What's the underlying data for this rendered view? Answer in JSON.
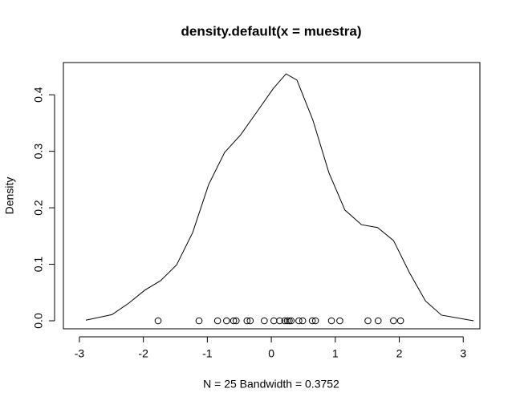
{
  "chart_data": {
    "type": "line",
    "title": "density.default(x = muestra)",
    "xlabel": "N = 25   Bandwidth = 0.3752",
    "ylabel": "Density",
    "x": [
      -2.9,
      -2.49,
      -2.23,
      -1.98,
      -1.73,
      -1.48,
      -1.23,
      -0.98,
      -0.73,
      -0.48,
      -0.23,
      0.03,
      0.23,
      0.4,
      0.65,
      0.9,
      1.15,
      1.41,
      1.66,
      1.91,
      2.16,
      2.41,
      2.66,
      3.16
    ],
    "values": [
      0.001,
      0.011,
      0.031,
      0.054,
      0.071,
      0.099,
      0.156,
      0.241,
      0.298,
      0.329,
      0.369,
      0.411,
      0.437,
      0.426,
      0.355,
      0.262,
      0.196,
      0.17,
      0.165,
      0.142,
      0.085,
      0.035,
      0.01,
      0.0
    ],
    "color": "#000000",
    "sample": {
      "x": [
        -1.77,
        -1.13,
        -0.84,
        -0.7,
        -0.59,
        -0.55,
        -0.38,
        -0.33,
        -0.11,
        0.04,
        0.13,
        0.21,
        0.25,
        0.28,
        0.31,
        0.43,
        0.49,
        0.64,
        0.69,
        0.94,
        1.07,
        1.51,
        1.67,
        1.91,
        2.02
      ],
      "values": [
        0,
        0,
        0,
        0,
        0,
        0,
        0,
        0,
        0,
        0,
        0,
        0,
        0,
        0,
        0,
        0,
        0,
        0,
        0,
        0,
        0,
        0,
        0,
        0,
        0
      ]
    },
    "xlim": [
      -3.25,
      3.26
    ],
    "ylim": [
      -0.0142,
      0.457
    ],
    "xticks": [
      -3,
      -2,
      -1,
      0,
      1,
      2,
      3
    ],
    "yticks": [
      {
        "value": 0,
        "label": "0.0"
      },
      {
        "value": 0.1,
        "label": "0.1"
      },
      {
        "value": 0.2,
        "label": "0.2"
      },
      {
        "value": 0.3,
        "label": "0.3"
      },
      {
        "value": 0.4,
        "label": "0.4"
      }
    ]
  }
}
